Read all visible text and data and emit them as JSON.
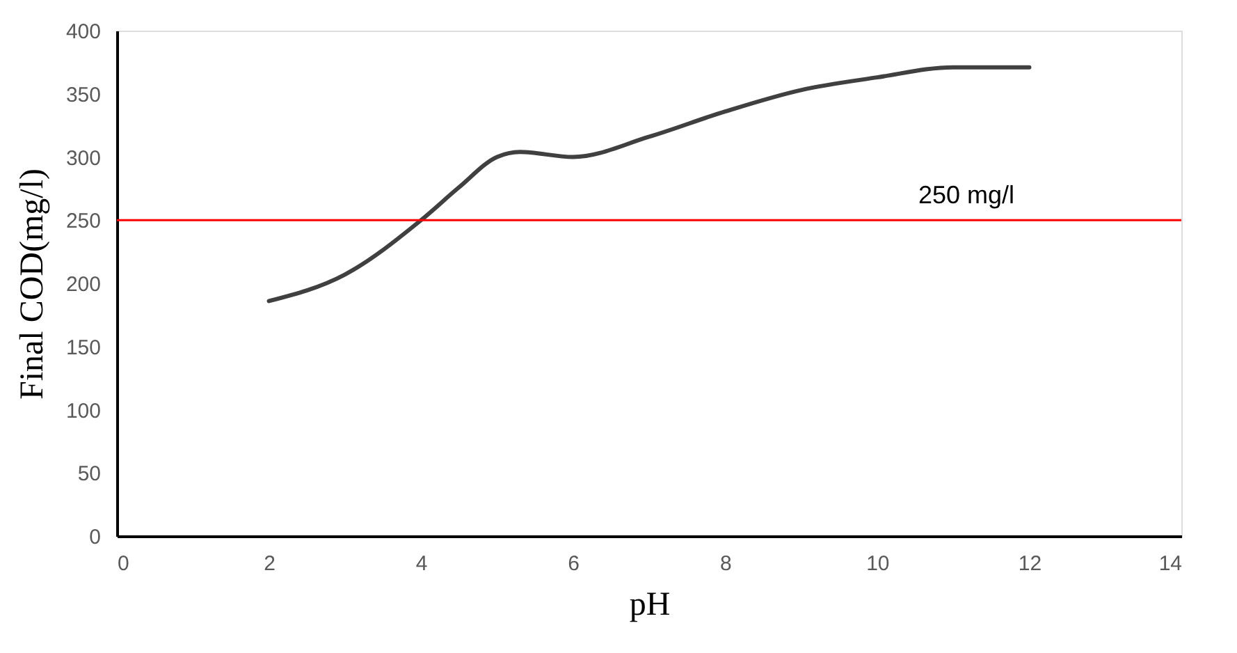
{
  "chart_data": {
    "type": "line",
    "xlabel": "pH",
    "ylabel": "Final COD(mg/l)",
    "x": [
      2,
      3,
      4,
      4.5,
      5,
      5.3,
      6,
      7,
      8,
      9,
      10,
      11,
      12
    ],
    "series": [
      {
        "color": "#404040",
        "values": [
          186,
          207,
          250,
          276,
          300,
          304,
          300,
          316,
          336,
          353,
          363,
          371,
          371
        ]
      }
    ],
    "xlim": [
      0,
      14
    ],
    "xticks": [
      0,
      2,
      4,
      6,
      8,
      10,
      12,
      14
    ],
    "ylim": [
      0,
      400
    ],
    "yticks": [
      0,
      50,
      100,
      150,
      200,
      250,
      300,
      350,
      400
    ],
    "ref_lines": [
      {
        "axis": "y",
        "value": 250,
        "label": "250 mg/l",
        "color": "#ff0000"
      }
    ],
    "grid": false,
    "marker": "none",
    "line_style": "solid"
  }
}
